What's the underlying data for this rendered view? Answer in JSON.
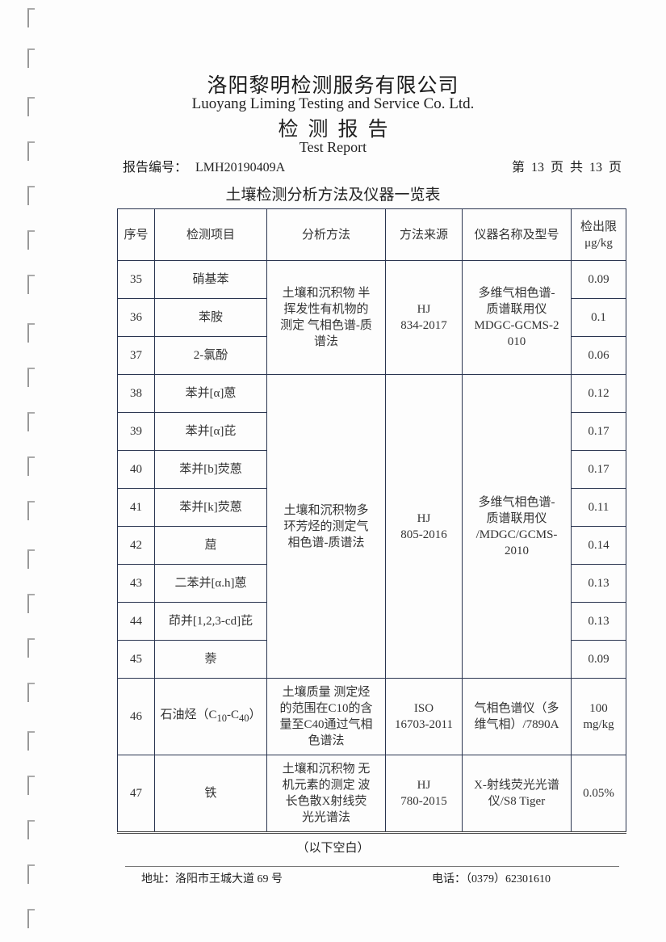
{
  "header": {
    "company_cn": "洛阳黎明检测服务有限公司",
    "company_en": "Luoyang Liming Testing and Service Co. Ltd.",
    "report_cn": "检测报告",
    "report_en": "Test Report",
    "report_no_label": "报告编号：",
    "report_no": "LMH20190409A",
    "page_info": "第 13 页 共 13 页"
  },
  "table": {
    "title": "土壤检测分析方法及仪器一览表",
    "columns": [
      "序号",
      "检测项目",
      "分析方法",
      "方法来源",
      "仪器名称及型号",
      "检出限\nμg/kg"
    ],
    "rows": [
      {
        "no": "35",
        "item": "硝基苯",
        "limit": "0.09"
      },
      {
        "no": "36",
        "item": "苯胺",
        "limit": "0.1"
      },
      {
        "no": "37",
        "item": "2-氯酚",
        "limit": "0.06"
      },
      {
        "no": "38",
        "item": "苯并[α]蒽",
        "limit": "0.12"
      },
      {
        "no": "39",
        "item": "苯并[α]芘",
        "limit": "0.17"
      },
      {
        "no": "40",
        "item": "苯并[b]荧蒽",
        "limit": "0.17"
      },
      {
        "no": "41",
        "item": "苯并[k]荧蒽",
        "limit": "0.11"
      },
      {
        "no": "42",
        "item": "䓛",
        "limit": "0.14"
      },
      {
        "no": "43",
        "item": "二苯并[α.h]蒽",
        "limit": "0.13"
      },
      {
        "no": "44",
        "item": "茚并[1,2,3-cd]芘",
        "limit": "0.13"
      },
      {
        "no": "45",
        "item": "萘",
        "limit": "0.09"
      },
      {
        "no": "46",
        "item_parts": [
          "石油烃（C",
          "10",
          "-C",
          "40",
          "）"
        ],
        "method": "土壤质量 测定烃\n的范围在C10的含\n量至C40通过气相\n色谱法",
        "source": "ISO\n16703-2011",
        "instrument": "气相色谱仪（多\n维气相）/7890A",
        "limit": "100\nmg/kg"
      },
      {
        "no": "47",
        "item": "铁",
        "method": "土壤和沉积物 无\n机元素的测定 波\n长色散X射线荧\n光光谱法",
        "source": "HJ\n780-2015",
        "instrument": "X-射线荧光光谱\n仪/S8 Tiger",
        "limit": "0.05%"
      }
    ],
    "groups": [
      {
        "method": "土壤和沉积物 半\n挥发性有机物的\n测定 气相色谱-质\n谱法",
        "source": "HJ\n834-2017",
        "instrument": "多维气相色谱-\n质谱联用仪\nMDGC-GCMS-2\n010"
      },
      {
        "method": "土壤和沉积物多\n环芳烃的测定气\n相色谱-质谱法",
        "source": "HJ\n805-2016",
        "instrument": "多维气相色谱-\n质谱联用仪\n/MDGC/GCMS-\n2010"
      }
    ],
    "end_note": "（以下空白）"
  },
  "footer": {
    "address": "地址：洛阳市王城大道 69 号",
    "phone": "电话：（0379）62301610"
  }
}
